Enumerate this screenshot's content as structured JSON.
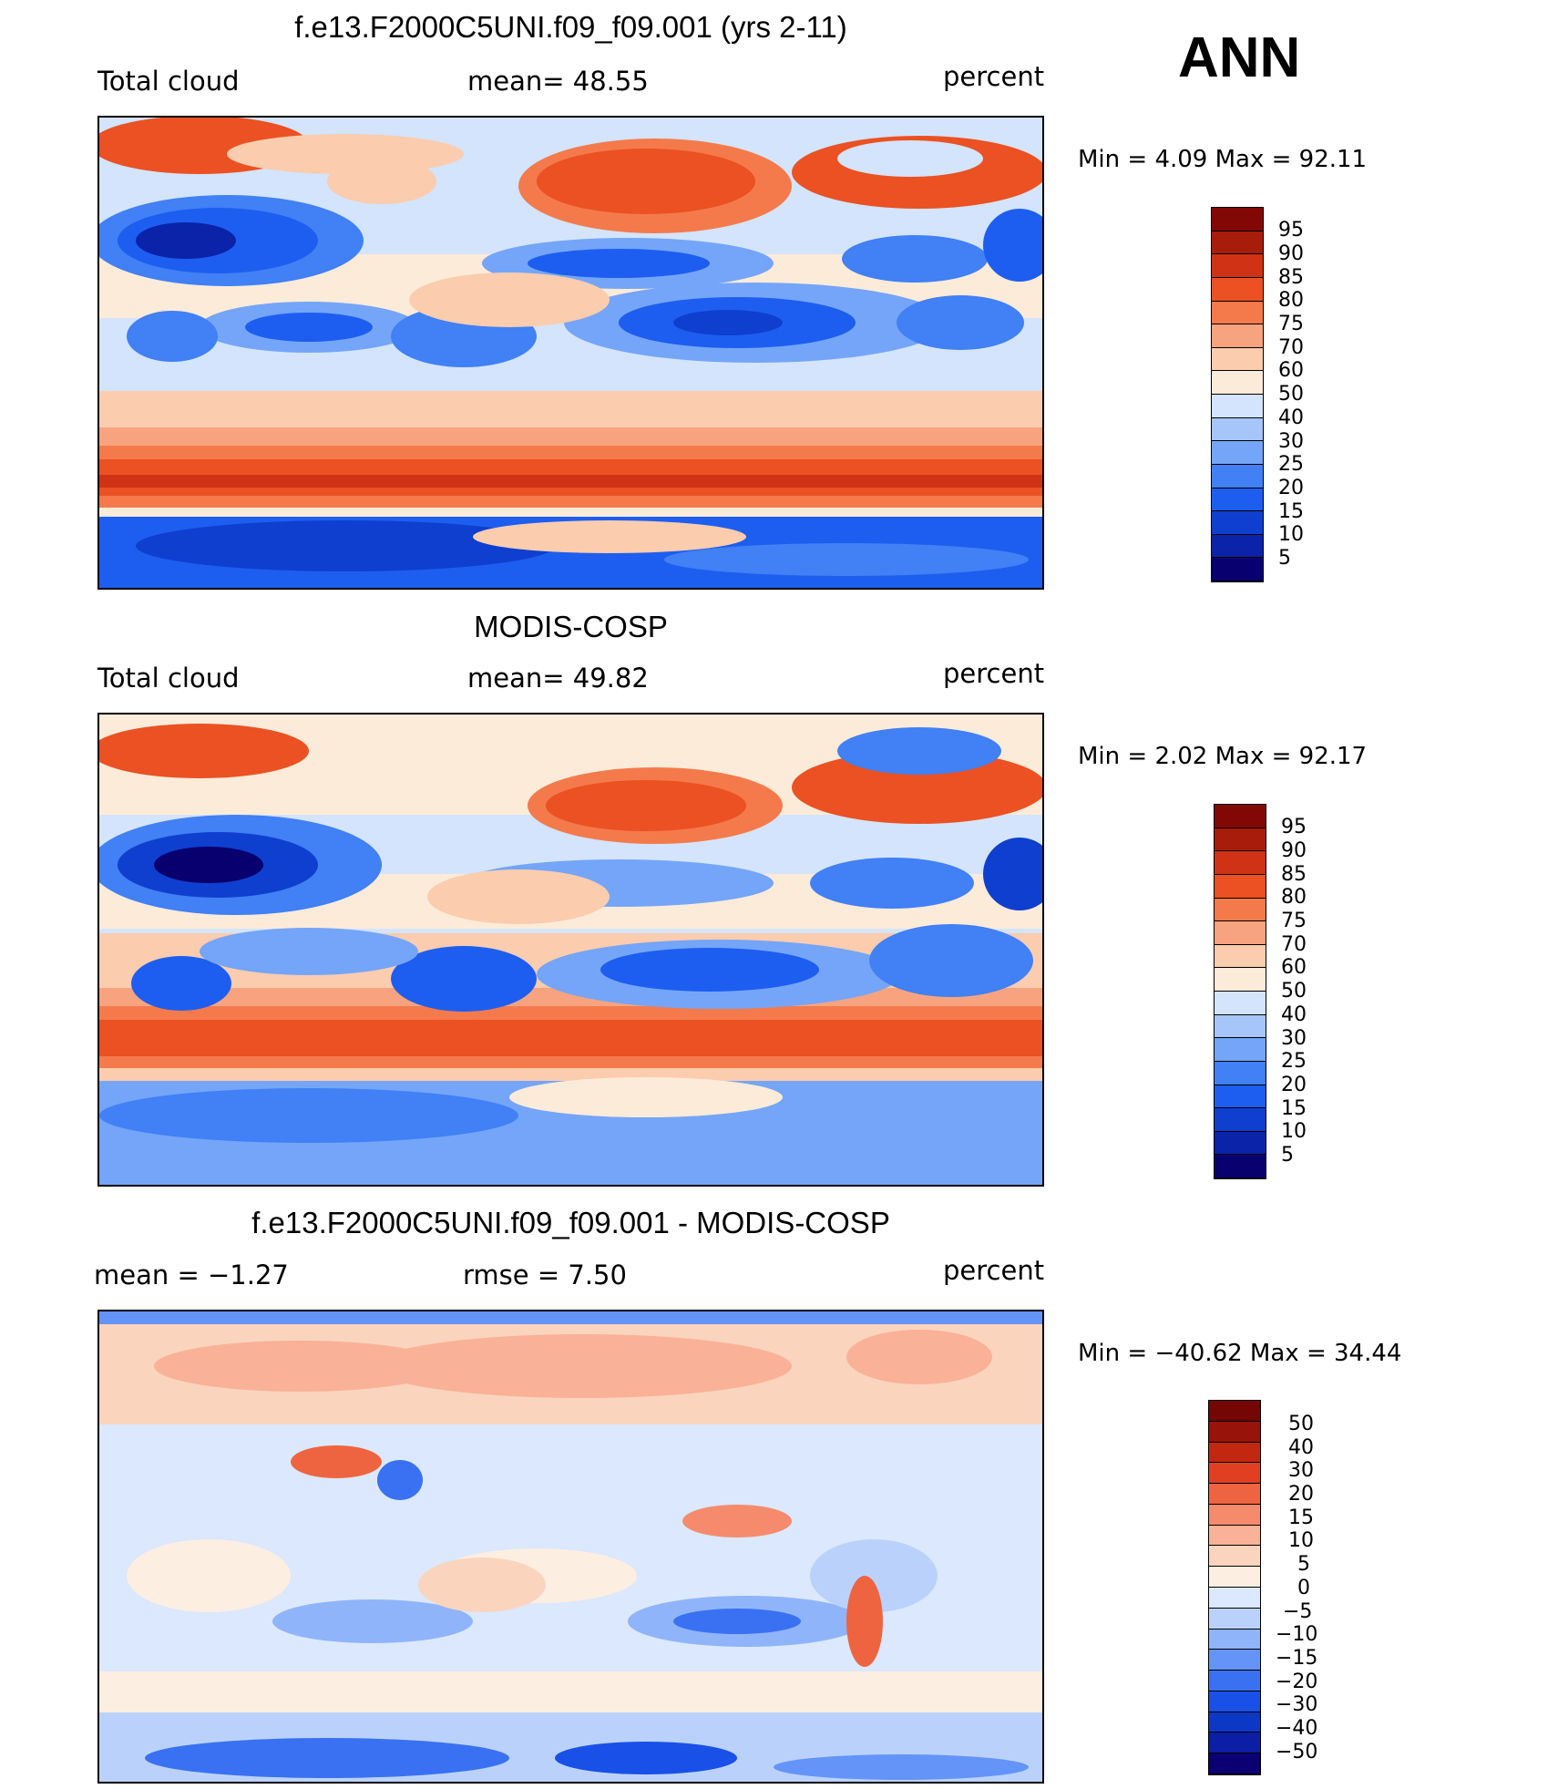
{
  "season": "ANN",
  "colors": {
    "model_scale": [
      "#08006e",
      "#0a23a8",
      "#0f3fcf",
      "#1d5ef0",
      "#4180f5",
      "#74a5f8",
      "#a6c6fa",
      "#d3e4fc",
      "#fdebd9",
      "#fbccae",
      "#f8a37f",
      "#f47a4c",
      "#eb5122",
      "#cf3214",
      "#a81c0c",
      "#820806"
    ],
    "diff_scale": [
      "#0a0073",
      "#0b1ea5",
      "#0d38c6",
      "#1850e8",
      "#3a71f2",
      "#6494f7",
      "#8fb4fa",
      "#bad2fb",
      "#dbe8fd",
      "#fdeee2",
      "#fbd4bd",
      "#f9b198",
      "#f58b6c",
      "#ef6440",
      "#e04021",
      "#c22810",
      "#98140a",
      "#740603"
    ]
  },
  "panels": [
    {
      "id": "model",
      "title": "f.e13.F2000C5UNI.f09_f09.001 (yrs 2-11)",
      "left_label": "Total cloud",
      "center_label": "mean=   48.55",
      "right_label": "percent",
      "min_max": "Min  =     4.09  Max  =    92.11",
      "colorbar_ticks": [
        "95",
        "90",
        "85",
        "80",
        "75",
        "70",
        "60",
        "50",
        "40",
        "30",
        "25",
        "20",
        "15",
        "10",
        "5"
      ]
    },
    {
      "id": "obs",
      "title": "MODIS-COSP",
      "left_label": "Total cloud",
      "center_label": "mean=   49.82",
      "right_label": "percent",
      "min_max": "Min  =     2.02  Max  =    92.17",
      "colorbar_ticks": [
        "95",
        "90",
        "85",
        "80",
        "75",
        "70",
        "60",
        "50",
        "40",
        "30",
        "25",
        "20",
        "15",
        "10",
        "5"
      ]
    },
    {
      "id": "diff",
      "title": "f.e13.F2000C5UNI.f09_f09.001 - MODIS-COSP",
      "left_label": "mean  =   −1.27",
      "center_label": "rmse  =     7.50",
      "right_label": "percent",
      "min_max": "Min  = −40.62  Max  =    34.44",
      "colorbar_ticks": [
        "50",
        "40",
        "30",
        "20",
        "15",
        "10",
        "5",
        "0",
        "−5",
        "−10",
        "−15",
        "−20",
        "−30",
        "−40",
        "−50"
      ]
    }
  ]
}
